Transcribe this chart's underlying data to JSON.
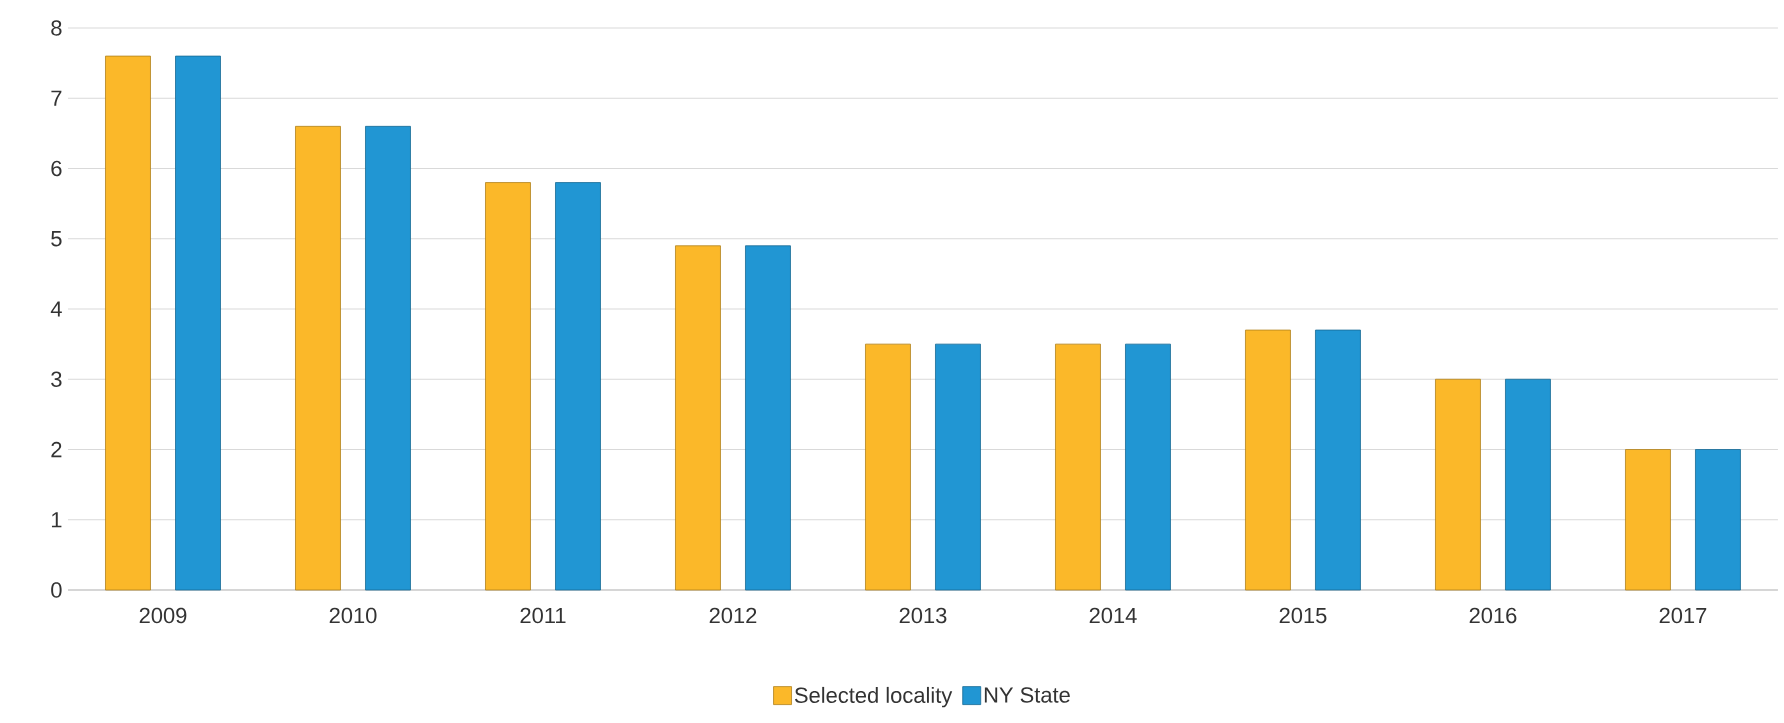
{
  "chart_data": {
    "type": "bar",
    "categories": [
      "2009",
      "2010",
      "2011",
      "2012",
      "2013",
      "2014",
      "2015",
      "2016",
      "2017"
    ],
    "series": [
      {
        "name": "Selected locality",
        "color": "#fbb829",
        "values": [
          7.6,
          6.6,
          5.8,
          4.9,
          3.5,
          3.5,
          3.7,
          3.0,
          2.0
        ]
      },
      {
        "name": "NY State",
        "color": "#2196d3",
        "values": [
          7.6,
          6.6,
          5.8,
          4.9,
          3.5,
          3.5,
          3.7,
          3.0,
          2.0
        ]
      }
    ],
    "ylim": [
      0,
      8
    ],
    "yticks": [
      0,
      1,
      2,
      3,
      4,
      5,
      6,
      7,
      8
    ],
    "grid": "y",
    "legend": "bottom"
  }
}
